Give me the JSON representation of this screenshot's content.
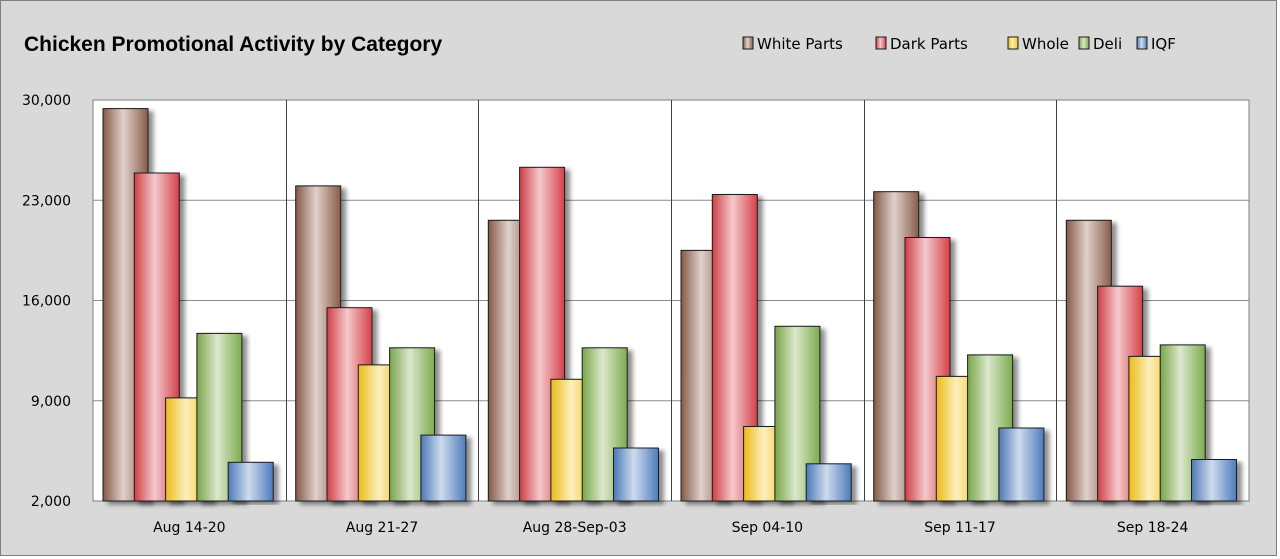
{
  "chart_data": {
    "type": "bar",
    "title": "Chicken Promotional Activity by Category",
    "xlabel": "",
    "ylabel": "",
    "ylim": [
      2000,
      30000
    ],
    "yticks": [
      "30,000",
      "23,000",
      "16,000",
      "9,000",
      "2,000"
    ],
    "ytick_values": [
      30000,
      23000,
      16000,
      9000,
      2000
    ],
    "grid": true,
    "legend_position": "top-right",
    "categories": [
      "Aug 14-20",
      "Aug 21-27",
      "Aug 28-Sep-03",
      "Sep 04-10",
      "Sep 11-17",
      "Sep 18-24"
    ],
    "series": [
      {
        "name": "White Parts",
        "color": "#8b5e4a",
        "values": [
          29400,
          24000,
          21600,
          19500,
          23600,
          21600
        ]
      },
      {
        "name": "Dark Parts",
        "color": "#d9414a",
        "values": [
          24900,
          15500,
          25300,
          23400,
          20400,
          17000
        ]
      },
      {
        "name": "Whole",
        "color": "#f5c518",
        "values": [
          9200,
          11500,
          10500,
          7200,
          10700,
          12100
        ]
      },
      {
        "name": "Deli",
        "color": "#7fae4e",
        "values": [
          13700,
          12700,
          12700,
          14200,
          12200,
          12900
        ]
      },
      {
        "name": "IQF",
        "color": "#4f7fc0",
        "values": [
          4700,
          6600,
          5700,
          4600,
          7100,
          4900
        ]
      }
    ]
  }
}
